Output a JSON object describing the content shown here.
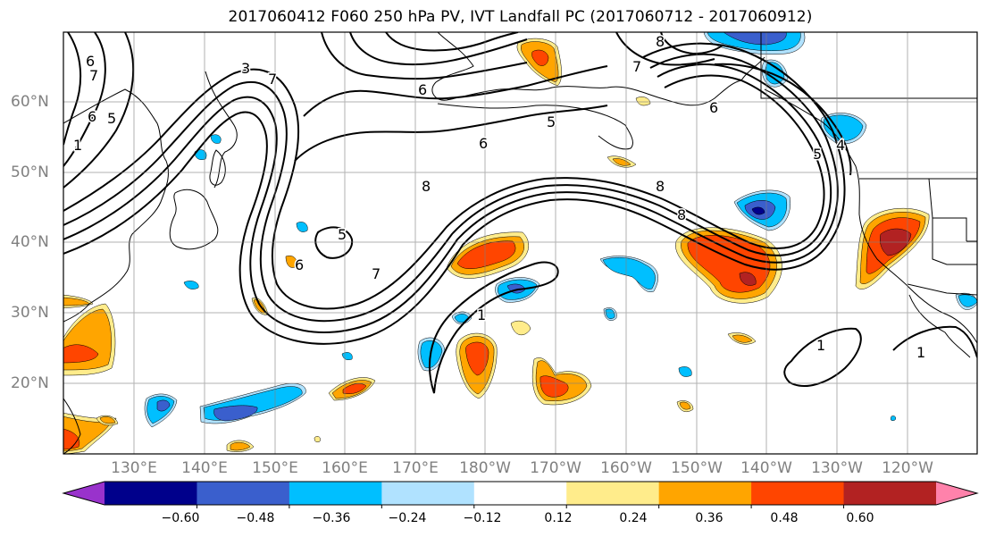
{
  "title": "2017060412 F060 250 hPa PV, IVT Landfall PC (2017060712 - 2017060912)",
  "lat_labels": [
    "60°N",
    "50°N",
    "40°N",
    "30°N",
    "20°N"
  ],
  "lon_labels": [
    "130°E",
    "140°E",
    "150°E",
    "160°E",
    "170°E",
    "180°W",
    "170°W",
    "160°W",
    "150°W",
    "140°W",
    "130°W",
    "120°W"
  ],
  "colorbar": {
    "colors": [
      "#9932CC",
      "#00008B",
      "#3A5FCD",
      "#00BFFF",
      "#B0E2FF",
      "#FFFFFF",
      "#FFEC8B",
      "#FFA500",
      "#FF4500",
      "#B22222",
      "#FF82AB"
    ],
    "tick_labels": [
      "−0.60",
      "−0.48",
      "−0.36",
      "−0.24",
      "−0.12",
      "0.12",
      "0.24",
      "0.36",
      "0.48",
      "0.60"
    ]
  },
  "contour_labels": [
    "6",
    "7",
    "6",
    "1",
    "5",
    "3",
    "7",
    "6",
    "5",
    "8",
    "6",
    "8",
    "7",
    "8",
    "5",
    "6",
    "4",
    "5",
    "6",
    "7",
    "8",
    "1",
    "1",
    "1"
  ]
}
